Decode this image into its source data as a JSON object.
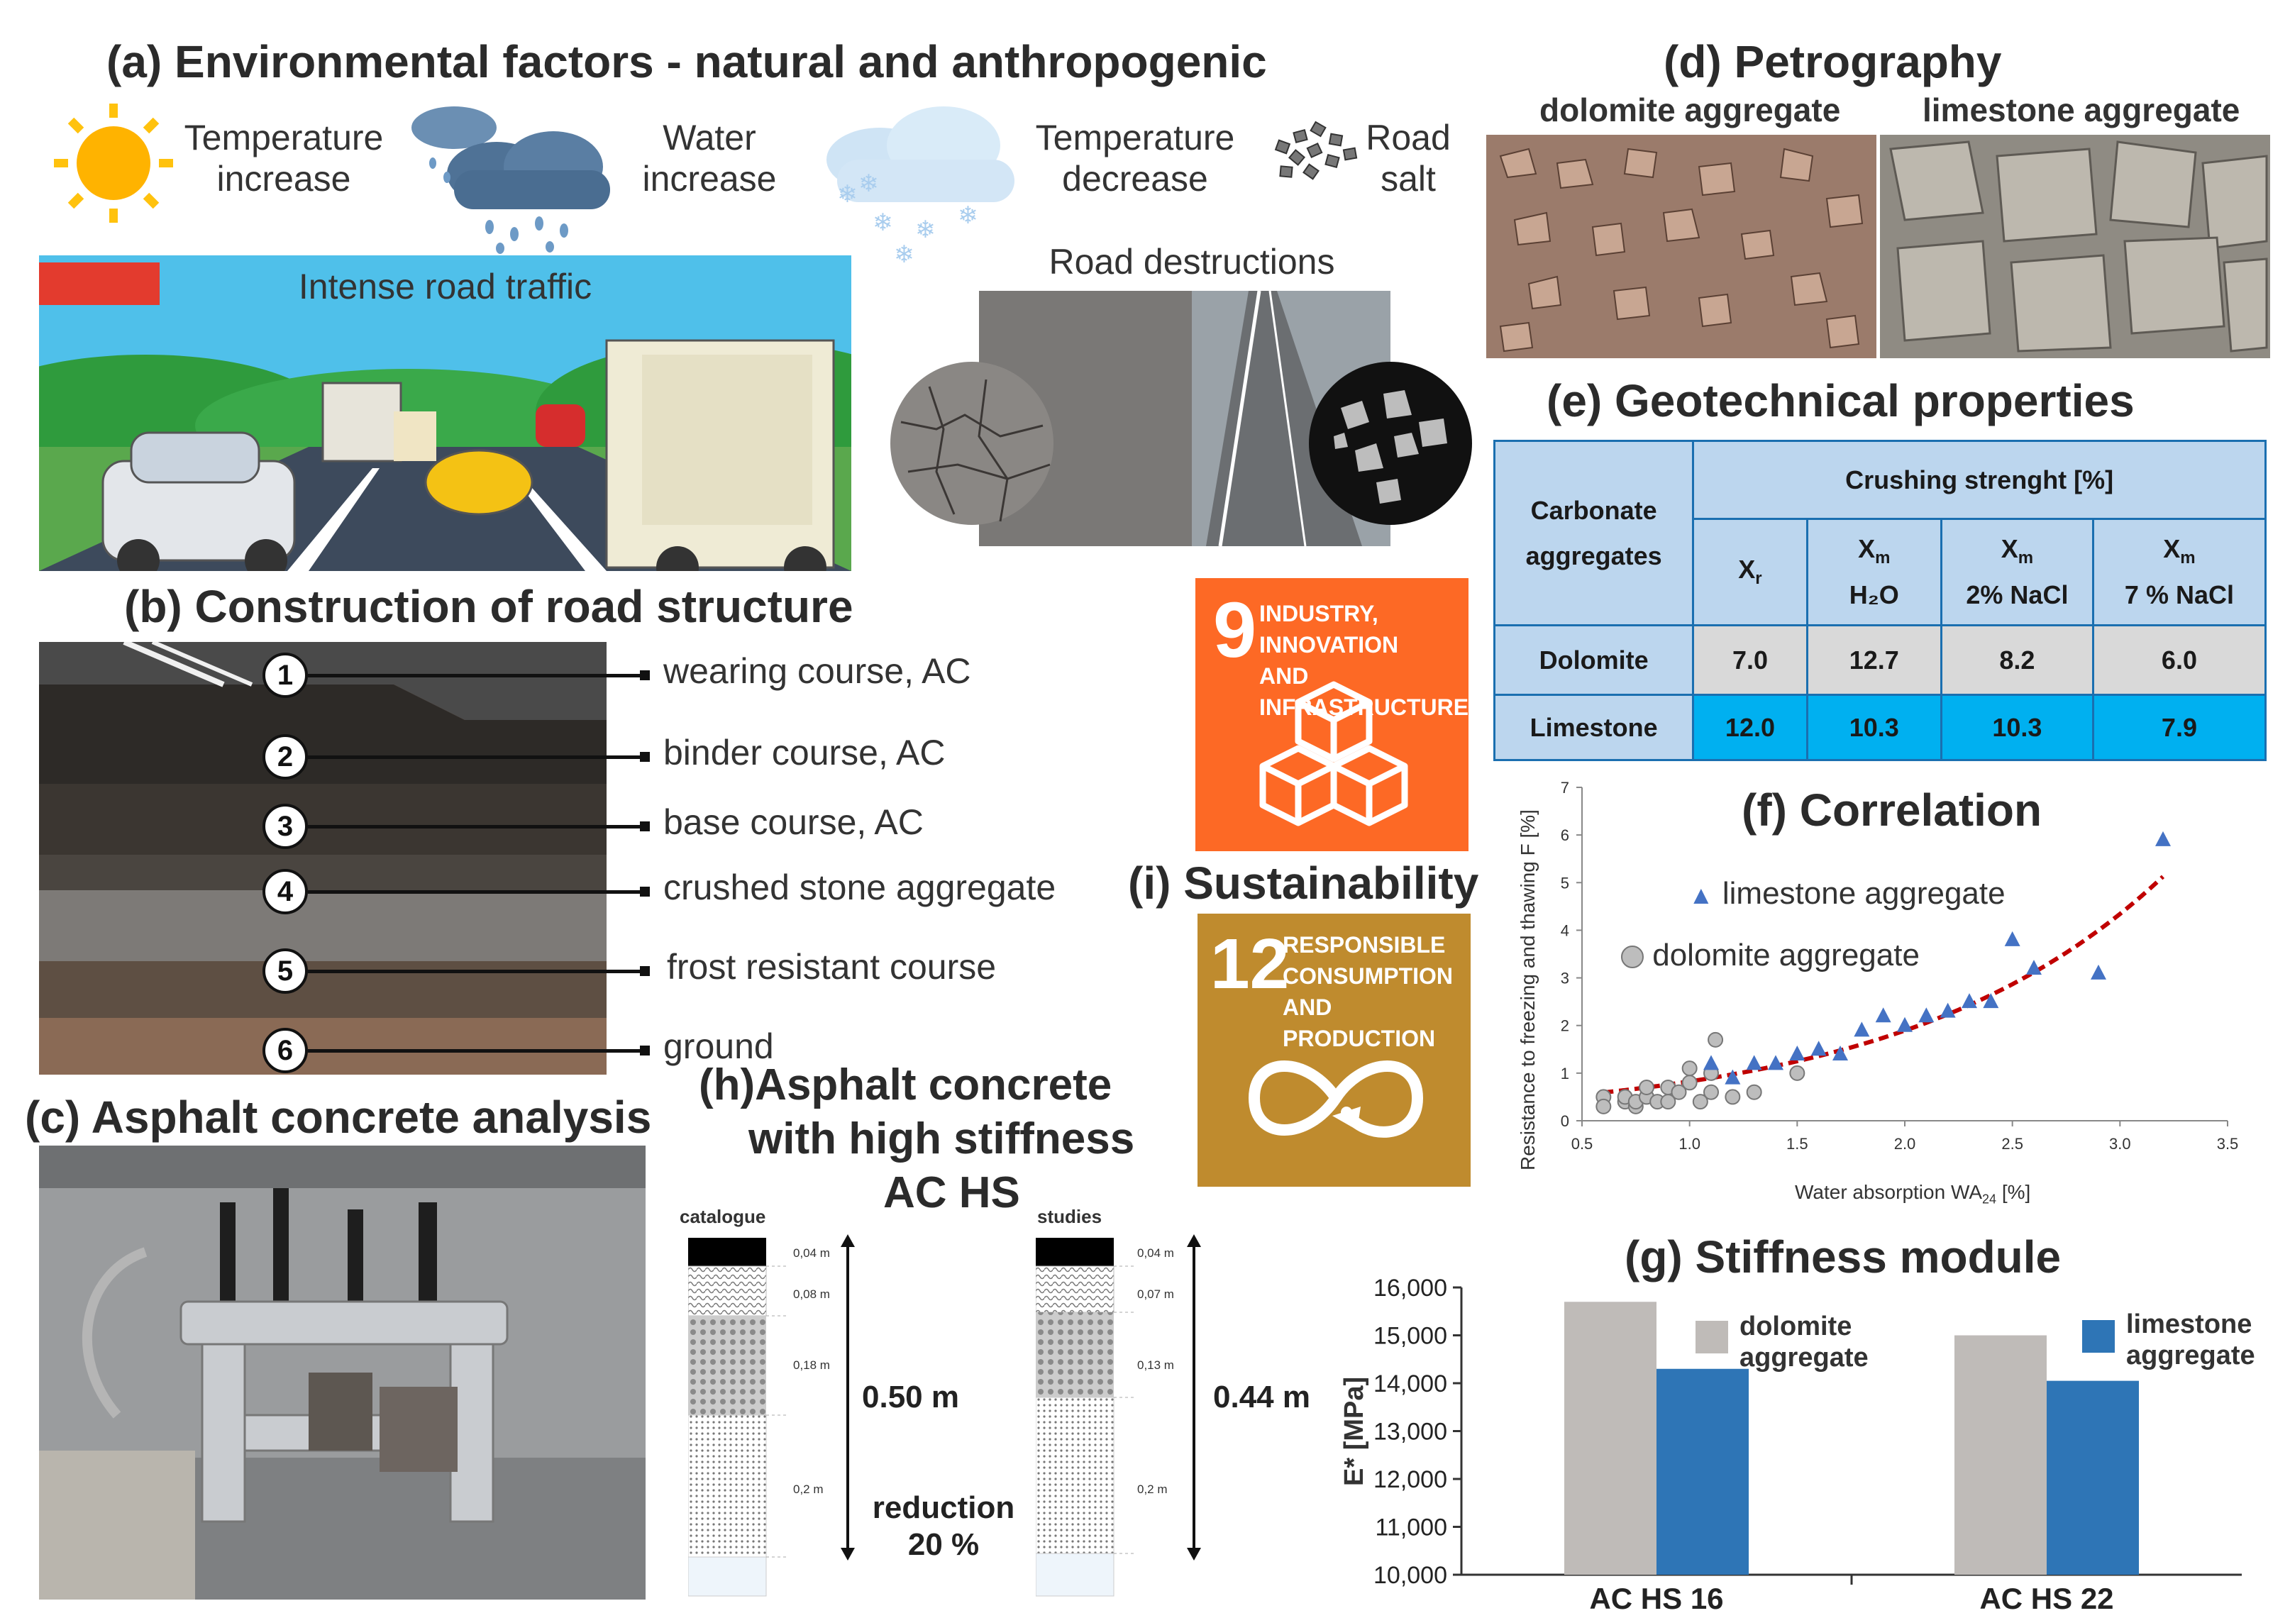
{
  "panel_a": {
    "title": "Environmental factors - natural and anthropogenic",
    "letter": "(a)",
    "factors": [
      {
        "label_l1": "Temperature",
        "label_l2": "increase",
        "icon": "sun-icon"
      },
      {
        "label_l1": "Water",
        "label_l2": "increase",
        "icon": "rain-cloud-icon"
      },
      {
        "label_l1": "Temperature",
        "label_l2": "decrease",
        "icon": "snow-cloud-icon"
      },
      {
        "label_l1": "Road",
        "label_l2": "salt",
        "icon": "salt-icon"
      }
    ],
    "traffic_label": "Intense road traffic",
    "destruction_label": "Road destructions"
  },
  "panel_b": {
    "letter": "(b)",
    "title": "Construction of road structure",
    "layers": [
      {
        "n": "1",
        "label": "wearing course, AC"
      },
      {
        "n": "2",
        "label": "binder course, AC"
      },
      {
        "n": "3",
        "label": "base course, AC"
      },
      {
        "n": "4",
        "label": "crushed stone aggregate"
      },
      {
        "n": "5",
        "label": "frost resistant course"
      },
      {
        "n": "6",
        "label": "ground"
      }
    ]
  },
  "panel_c": {
    "letter": "(c)",
    "title": "Asphalt concrete analysis"
  },
  "panel_d": {
    "letter": "(d)",
    "title": "Petrography",
    "left_label": "dolomite aggregate",
    "right_label": "limestone aggregate"
  },
  "panel_e": {
    "letter": "(e)",
    "title": "Geotechnical properties",
    "row_header_l1": "Carbonate",
    "row_header_l2": "aggregates",
    "group_header": "Crushing strenght [%]",
    "cols": [
      {
        "main": "X",
        "sub": "r",
        "line2": ""
      },
      {
        "main": "X",
        "sub": "m",
        "line2": "H₂O"
      },
      {
        "main": "X",
        "sub": "m",
        "line2": "2% NaCl"
      },
      {
        "main": "X",
        "sub": "m",
        "line2": "7 % NaCl"
      }
    ],
    "rows": [
      {
        "name": "Dolomite",
        "values": [
          "7.0",
          "12.7",
          "8.2",
          "6.0"
        ]
      },
      {
        "name": "Limestone",
        "values": [
          "12.0",
          "10.3",
          "10.3",
          "7.9"
        ]
      }
    ],
    "colors": {
      "header": "#bcd6ee",
      "dolomite": "#d9d9d9",
      "limestone": "#00b0f0"
    }
  },
  "panel_f": {
    "letter": "(f)",
    "title": "Correlation",
    "xlabel": "Water absorption WA",
    "xlabel_sub": "24",
    "xlabel_unit": " [%]",
    "ylabel": "Resistance to freezing and thawing F [%]",
    "legend": [
      "limestone aggregate",
      "dolomite aggregate"
    ],
    "x_ticks": [
      "0.5",
      "1.0",
      "1.5",
      "2.0",
      "2.5",
      "3.0",
      "3.5"
    ],
    "y_ticks": [
      "0",
      "1",
      "2",
      "3",
      "4",
      "5",
      "6",
      "7"
    ]
  },
  "panel_g": {
    "letter": "(g)",
    "title": "Stiffness module",
    "ylabel": "E* [MPa]",
    "y_ticks": [
      "10,000",
      "11,000",
      "12,000",
      "13,000",
      "14,000",
      "15,000",
      "16,000"
    ],
    "legend_dolomite_l1": "dolomite",
    "legend_dolomite_l2": "aggregate",
    "legend_limestone_l1": "limestone",
    "legend_limestone_l2": "aggregate",
    "colors": {
      "dolomite": "#bfbbb8",
      "limestone": "#2e75b6"
    }
  },
  "panel_h": {
    "letter": "(h)",
    "title_l1": "Asphalt concrete",
    "title_l2": "with high stiffness",
    "title_l3": "AC HS",
    "left": {
      "label": "catalogue",
      "layers": [
        "0,04 m",
        "0,08 m",
        "0,18 m",
        "0,2 m"
      ],
      "total": "0.50 m"
    },
    "right": {
      "label": "studies",
      "layers": [
        "0,04 m",
        "0,07 m",
        "0,13 m",
        "0,2 m"
      ],
      "total": "0.44 m"
    },
    "reduction_l1": "reduction",
    "reduction_l2": "20 %"
  },
  "panel_i": {
    "letter": "(i)",
    "title": "Sustainability",
    "sdg9": {
      "num": "9",
      "l1": "INDUSTRY, INNOVATION",
      "l2": "AND INFRASTRUCTURE",
      "color": "#fd6925"
    },
    "sdg12": {
      "num": "12",
      "l1": "RESPONSIBLE",
      "l2": "CONSUMPTION",
      "l3": "AND PRODUCTION",
      "color": "#bf8b2e"
    }
  },
  "chart_data": [
    {
      "type": "scatter",
      "title": "Correlation",
      "xlabel": "Water absorption WA24 [%]",
      "ylabel": "Resistance to freezing and thawing F [%]",
      "xlim": [
        0.5,
        3.5
      ],
      "ylim": [
        0,
        7
      ],
      "series": [
        {
          "name": "limestone aggregate",
          "x": [
            1.1,
            1.2,
            1.3,
            1.4,
            1.5,
            1.6,
            1.7,
            1.8,
            1.9,
            2.0,
            2.1,
            2.2,
            2.3,
            2.4,
            2.5,
            2.6,
            2.9,
            3.2
          ],
          "y": [
            1.2,
            0.9,
            1.2,
            1.2,
            1.4,
            1.5,
            1.4,
            1.9,
            2.2,
            2.0,
            2.2,
            2.3,
            2.5,
            2.5,
            3.8,
            3.2,
            3.1,
            5.9
          ]
        },
        {
          "name": "dolomite aggregate",
          "x": [
            0.6,
            0.6,
            0.7,
            0.7,
            0.75,
            0.75,
            0.8,
            0.8,
            0.85,
            0.9,
            0.9,
            0.95,
            1.0,
            1.0,
            1.05,
            1.1,
            1.1,
            1.12,
            1.2,
            1.3,
            1.5
          ],
          "y": [
            0.5,
            0.3,
            0.4,
            0.5,
            0.3,
            0.4,
            0.5,
            0.7,
            0.4,
            0.4,
            0.7,
            0.6,
            0.8,
            1.1,
            0.4,
            0.6,
            1.0,
            1.7,
            0.5,
            0.6,
            1.0
          ]
        }
      ]
    },
    {
      "type": "bar",
      "title": "Stiffness module",
      "ylabel": "E* [MPa]",
      "categories": [
        "AC HS 16",
        "AC HS 22"
      ],
      "ylim": [
        10000,
        16000
      ],
      "series": [
        {
          "name": "dolomite aggregate",
          "values": [
            15700,
            15000
          ]
        },
        {
          "name": "limestone aggregate",
          "values": [
            14300,
            14050
          ]
        }
      ]
    }
  ]
}
